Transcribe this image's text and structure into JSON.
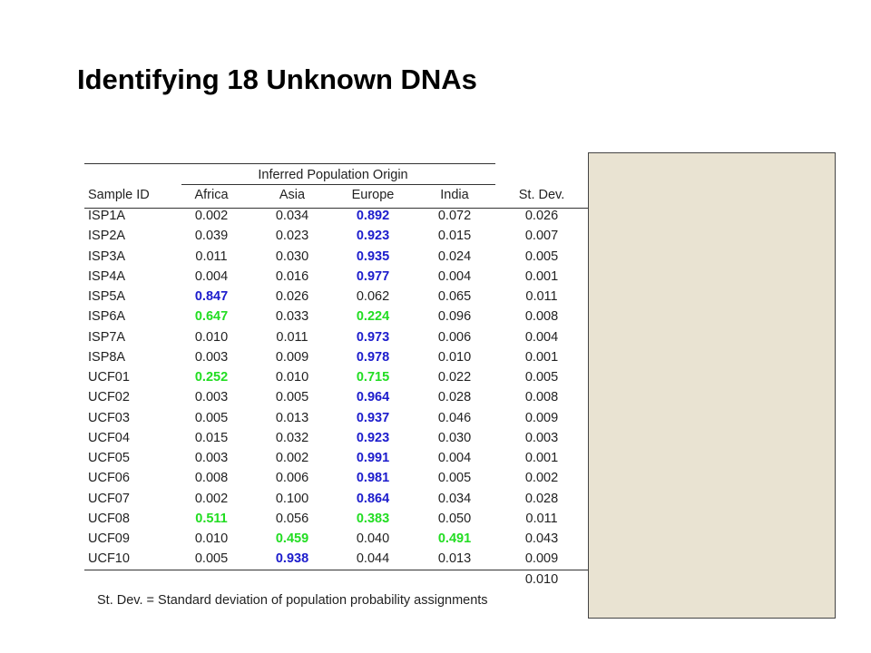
{
  "header": {
    "title": "Identifying 18 Unknown DNAs"
  },
  "table": {
    "group_header": "Inferred Population Origin",
    "columns": [
      "Sample ID",
      "Africa",
      "Asia",
      "Europe",
      "India",
      "St. Dev."
    ],
    "rows": [
      [
        "ISP1A",
        "0.002",
        "0.034",
        {
          "text": "0.892",
          "color": "#1c1ccc"
        },
        "0.072",
        "0.026"
      ],
      [
        "ISP2A",
        "0.039",
        "0.023",
        {
          "text": "0.923",
          "color": "#1c1ccc"
        },
        "0.015",
        "0.007"
      ],
      [
        "ISP3A",
        "0.011",
        "0.030",
        {
          "text": "0.935",
          "color": "#1c1ccc"
        },
        "0.024",
        "0.005"
      ],
      [
        "ISP4A",
        "0.004",
        "0.016",
        {
          "text": "0.977",
          "color": "#1c1ccc"
        },
        "0.004",
        "0.001"
      ],
      [
        "ISP5A",
        {
          "text": "0.847",
          "color": "#1c1ccc"
        },
        "0.026",
        "0.062",
        "0.065",
        "0.011"
      ],
      [
        "ISP6A",
        {
          "text": "0.647",
          "color": "#22dd22"
        },
        "0.033",
        {
          "text": "0.224",
          "color": "#22dd22"
        },
        "0.096",
        "0.008"
      ],
      [
        "ISP7A",
        "0.010",
        "0.011",
        {
          "text": "0.973",
          "color": "#1c1ccc"
        },
        "0.006",
        "0.004"
      ],
      [
        "ISP8A",
        "0.003",
        "0.009",
        {
          "text": "0.978",
          "color": "#1c1ccc"
        },
        "0.010",
        "0.001"
      ],
      [
        "UCF01",
        {
          "text": "0.252",
          "color": "#22dd22"
        },
        "0.010",
        {
          "text": "0.715",
          "color": "#22dd22"
        },
        "0.022",
        "0.005"
      ],
      [
        "UCF02",
        "0.003",
        "0.005",
        {
          "text": "0.964",
          "color": "#1c1ccc"
        },
        "0.028",
        "0.008"
      ],
      [
        "UCF03",
        "0.005",
        "0.013",
        {
          "text": "0.937",
          "color": "#1c1ccc"
        },
        "0.046",
        "0.009"
      ],
      [
        "UCF04",
        "0.015",
        "0.032",
        {
          "text": "0.923",
          "color": "#1c1ccc"
        },
        "0.030",
        "0.003"
      ],
      [
        "UCF05",
        "0.003",
        "0.002",
        {
          "text": "0.991",
          "color": "#1c1ccc"
        },
        "0.004",
        "0.001"
      ],
      [
        "UCF06",
        "0.008",
        "0.006",
        {
          "text": "0.981",
          "color": "#1c1ccc"
        },
        "0.005",
        "0.002"
      ],
      [
        "UCF07",
        "0.002",
        "0.100",
        {
          "text": "0.864",
          "color": "#1c1ccc"
        },
        "0.034",
        "0.028"
      ],
      [
        "UCF08",
        {
          "text": "0.511",
          "color": "#22dd22"
        },
        "0.056",
        {
          "text": "0.383",
          "color": "#22dd22"
        },
        "0.050",
        "0.011"
      ],
      [
        "UCF09",
        "0.010",
        {
          "text": "0.459",
          "color": "#22dd22"
        },
        "0.040",
        {
          "text": "0.491",
          "color": "#22dd22"
        },
        "0.043"
      ],
      [
        "UCF10",
        "0.005",
        {
          "text": "0.938",
          "color": "#1c1ccc"
        },
        "0.044",
        "0.013",
        "0.009"
      ]
    ],
    "sd_mean": "0.010",
    "footnote": "St. Dev. = Standard deviation of population probability assignments"
  }
}
